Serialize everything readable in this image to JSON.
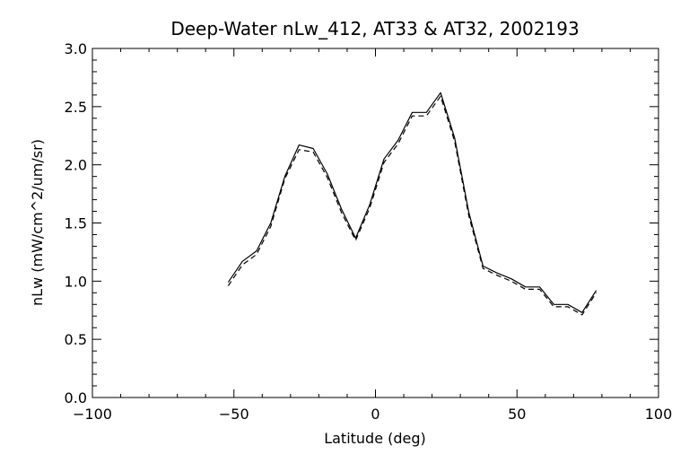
{
  "chart_data": {
    "type": "line",
    "title": "Deep-Water nLw_412, AT33 & AT32, 2002193",
    "xlabel": "Latitude (deg)",
    "ylabel": "nLw (mW/cm^2/um/sr)",
    "xlim": [
      -100,
      100
    ],
    "ylim": [
      0.0,
      3.0
    ],
    "x_ticks": [
      -100,
      -50,
      0,
      50,
      100
    ],
    "x_tick_labels": [
      "−100",
      "−50",
      "0",
      "50",
      "100"
    ],
    "y_ticks": [
      0.0,
      0.5,
      1.0,
      1.5,
      2.0,
      2.5,
      3.0
    ],
    "y_tick_labels": [
      "0.0",
      "0.5",
      "1.0",
      "1.5",
      "2.0",
      "2.5",
      "3.0"
    ],
    "grid": false,
    "legend": "none",
    "series": [
      {
        "line_style": "solid",
        "x": [
          -52,
          -47,
          -42,
          -37,
          -32,
          -27,
          -22,
          -17,
          -12,
          -7,
          -2,
          3,
          8,
          13,
          18,
          23,
          28,
          33,
          38,
          43,
          48,
          53,
          58,
          63,
          68,
          73,
          78
        ],
        "y": [
          0.99,
          1.17,
          1.26,
          1.5,
          1.9,
          2.17,
          2.14,
          1.92,
          1.62,
          1.37,
          1.66,
          2.05,
          2.21,
          2.45,
          2.45,
          2.62,
          2.23,
          1.59,
          1.13,
          1.07,
          1.02,
          0.95,
          0.95,
          0.8,
          0.8,
          0.73,
          0.92
        ]
      },
      {
        "line_style": "dashed",
        "x": [
          -52,
          -47,
          -42,
          -37,
          -32,
          -27,
          -22,
          -17,
          -12,
          -7,
          -2,
          3,
          8,
          13,
          18,
          23,
          28,
          33,
          38,
          43,
          48,
          53,
          58,
          63,
          68,
          73,
          78
        ],
        "y": [
          0.96,
          1.14,
          1.23,
          1.47,
          1.88,
          2.13,
          2.11,
          1.89,
          1.59,
          1.35,
          1.63,
          2.02,
          2.18,
          2.42,
          2.42,
          2.59,
          2.2,
          1.56,
          1.11,
          1.05,
          1.0,
          0.93,
          0.93,
          0.78,
          0.78,
          0.71,
          0.9
        ]
      }
    ],
    "colors": {
      "axis": "#000000",
      "line": "#000000",
      "background": "#ffffff"
    }
  }
}
